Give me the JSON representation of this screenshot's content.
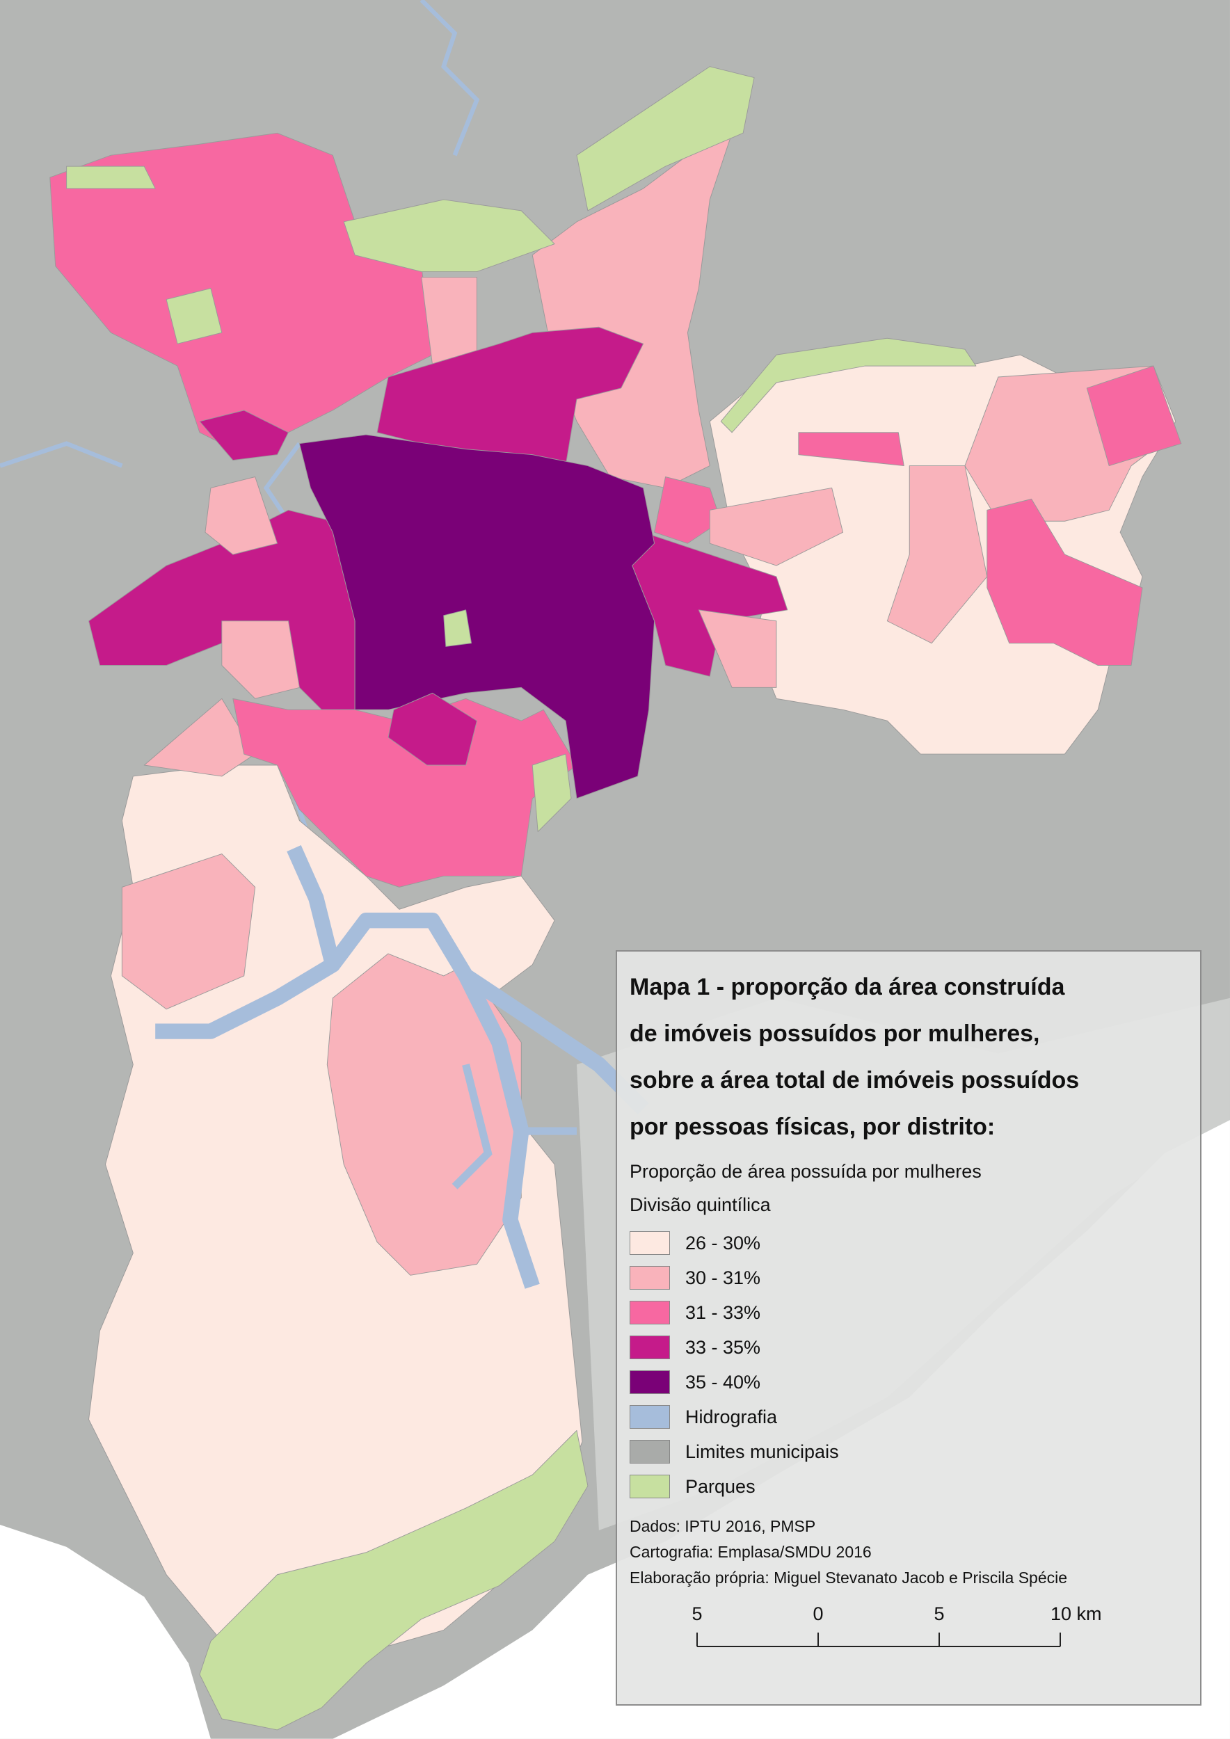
{
  "title_lines": [
    "Mapa 1 - proporção da área construída",
    "de imóveis possuídos por mulheres,",
    "sobre a área total de imóveis possuídos",
    "por pessoas físicas, por distrito:"
  ],
  "legend": {
    "subtitle_lines": [
      "Proporção de área possuída por mulheres",
      "Divisão quintílica"
    ],
    "items": [
      {
        "label": "26 - 30%",
        "color": "#fde9e1"
      },
      {
        "label": "30 - 31%",
        "color": "#f9b3bb"
      },
      {
        "label": "31 - 33%",
        "color": "#f768a1"
      },
      {
        "label": "33 - 35%",
        "color": "#c51b8a"
      },
      {
        "label": "35 - 40%",
        "color": "#7a0177"
      },
      {
        "label": "Hidrografia",
        "color": "#a6bddb"
      },
      {
        "label": "Limites municipais",
        "color": "#a9aba9"
      },
      {
        "label": "Parques",
        "color": "#c7e0a0"
      }
    ]
  },
  "credits": [
    "Dados: IPTU 2016, PMSP",
    "Cartografia: Emplasa/SMDU 2016",
    "Elaboração própria: Miguel Stevanato Jacob e Priscila Spécie"
  ],
  "scale_bar": {
    "labels": [
      "5",
      "0",
      "5",
      "10 km"
    ]
  }
}
